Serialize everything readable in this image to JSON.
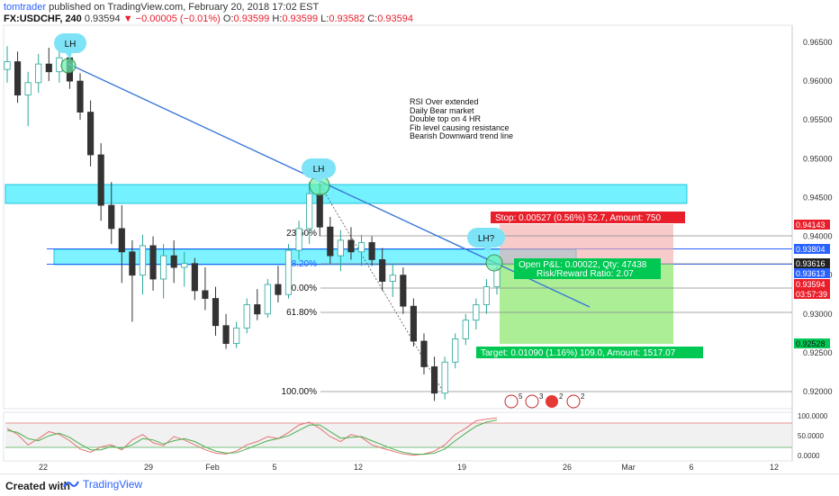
{
  "header": {
    "author": "tomtrader",
    "published": " published on TradingView.com, February 20, 2018 17:02 EST",
    "symbol": "FX:USDCHF, 240",
    "last": "0.93594",
    "change": "−0.00005 (−0.01%)",
    "ohlc_open_label": "O:",
    "ohlc_open": "0.93599",
    "ohlc_high_label": "H:",
    "ohlc_high": "0.93599",
    "ohlc_low_label": "L:",
    "ohlc_low": "0.93582",
    "ohlc_close_label": "C:",
    "ohlc_close": "0.93594"
  },
  "annotations": {
    "notes": [
      "RSI Over extended",
      "Daily Bear market",
      "Double top on 4 HR",
      "Fib level causing resistance",
      "Bearish Downward trend line"
    ],
    "bubbles": [
      "LH",
      "LH",
      "LH?"
    ],
    "fib_labels": [
      "23.60%",
      "38.20%",
      "50.00%",
      "61.80%",
      "100.00%"
    ],
    "stop_label": "Stop: 0.00527 (0.56%) 52.7, Amount: 750",
    "target_label": "Target: 0.01090 (1.16%) 109.0, Amount: 1517.07",
    "pnl_label": "Open P&L: 0.00022, Qty: 47438",
    "rr_label": "Risk/Reward Ratio: 2.07",
    "event_badges": [
      "5",
      "3",
      "2",
      "2"
    ]
  },
  "colors": {
    "candle_up": "#26a69a",
    "candle_down": "#333333",
    "resistance_zone": "#00e5ff",
    "trend_line": "#3b78d8",
    "stop_zone": "#f4a8a8",
    "target_zone": "#8fe873",
    "stop_tag": "#e91e2b",
    "target_tag": "#00c853",
    "stoch_k": "#e57373",
    "stoch_d": "#4caf50"
  },
  "chart_data": {
    "type": "candlestick",
    "symbol": "FX:USDCHF",
    "interval": "240",
    "x_ticks": [
      "22",
      "29",
      "Feb",
      "5",
      "12",
      "19",
      "26",
      "Mar",
      "6",
      "12"
    ],
    "price_axis": {
      "ylim": [
        0.9178,
        0.9672
      ],
      "ticks": [
        "0.96500",
        "0.96000",
        "0.95500",
        "0.95000",
        "0.94500",
        "0.94000",
        "0.93500",
        "0.93000",
        "0.92500",
        "0.92000"
      ],
      "tick_values": [
        0.965,
        0.96,
        0.955,
        0.95,
        0.945,
        0.94,
        0.935,
        0.93,
        0.925,
        0.92
      ]
    },
    "price_tags": [
      {
        "value": "0.94143",
        "role": "stop"
      },
      {
        "value": "0.93804",
        "role": "level"
      },
      {
        "value": "0.93616",
        "role": "current"
      },
      {
        "value": "0.93613",
        "role": "entry"
      },
      {
        "value": "0.93594",
        "role": "last"
      },
      {
        "value": "03:57:39",
        "role": "countdown"
      },
      {
        "value": "0.92528",
        "role": "target"
      }
    ],
    "candles": [
      {
        "o": 0.9615,
        "h": 0.9645,
        "l": 0.9598,
        "c": 0.9625
      },
      {
        "o": 0.9625,
        "h": 0.9638,
        "l": 0.9572,
        "c": 0.9582
      },
      {
        "o": 0.9582,
        "h": 0.9612,
        "l": 0.9542,
        "c": 0.9598
      },
      {
        "o": 0.9598,
        "h": 0.9635,
        "l": 0.9585,
        "c": 0.9622
      },
      {
        "o": 0.9622,
        "h": 0.9643,
        "l": 0.96,
        "c": 0.9612
      },
      {
        "o": 0.9612,
        "h": 0.964,
        "l": 0.9598,
        "c": 0.963
      },
      {
        "o": 0.963,
        "h": 0.9633,
        "l": 0.959,
        "c": 0.96
      },
      {
        "o": 0.96,
        "h": 0.961,
        "l": 0.955,
        "c": 0.956
      },
      {
        "o": 0.956,
        "h": 0.9575,
        "l": 0.949,
        "c": 0.9505
      },
      {
        "o": 0.9505,
        "h": 0.952,
        "l": 0.942,
        "c": 0.944
      },
      {
        "o": 0.944,
        "h": 0.947,
        "l": 0.939,
        "c": 0.941
      },
      {
        "o": 0.941,
        "h": 0.944,
        "l": 0.934,
        "c": 0.938
      },
      {
        "o": 0.938,
        "h": 0.9395,
        "l": 0.929,
        "c": 0.935
      },
      {
        "o": 0.935,
        "h": 0.9402,
        "l": 0.9325,
        "c": 0.9388
      },
      {
        "o": 0.9388,
        "h": 0.94,
        "l": 0.933,
        "c": 0.9345
      },
      {
        "o": 0.9345,
        "h": 0.939,
        "l": 0.932,
        "c": 0.9375
      },
      {
        "o": 0.9375,
        "h": 0.9395,
        "l": 0.934,
        "c": 0.936
      },
      {
        "o": 0.936,
        "h": 0.938,
        "l": 0.9335,
        "c": 0.9365
      },
      {
        "o": 0.9365,
        "h": 0.9372,
        "l": 0.9318,
        "c": 0.933
      },
      {
        "o": 0.933,
        "h": 0.936,
        "l": 0.9305,
        "c": 0.932
      },
      {
        "o": 0.932,
        "h": 0.9335,
        "l": 0.9272,
        "c": 0.9285
      },
      {
        "o": 0.9285,
        "h": 0.93,
        "l": 0.9255,
        "c": 0.9262
      },
      {
        "o": 0.9262,
        "h": 0.929,
        "l": 0.9256,
        "c": 0.9282
      },
      {
        "o": 0.9282,
        "h": 0.932,
        "l": 0.9275,
        "c": 0.9312
      },
      {
        "o": 0.9312,
        "h": 0.9332,
        "l": 0.9292,
        "c": 0.93
      },
      {
        "o": 0.93,
        "h": 0.9345,
        "l": 0.9295,
        "c": 0.9338
      },
      {
        "o": 0.9338,
        "h": 0.9362,
        "l": 0.9315,
        "c": 0.9325
      },
      {
        "o": 0.9325,
        "h": 0.939,
        "l": 0.932,
        "c": 0.9382
      },
      {
        "o": 0.9382,
        "h": 0.942,
        "l": 0.937,
        "c": 0.941
      },
      {
        "o": 0.941,
        "h": 0.947,
        "l": 0.939,
        "c": 0.9455
      },
      {
        "o": 0.9455,
        "h": 0.947,
        "l": 0.94,
        "c": 0.9412
      },
      {
        "o": 0.9412,
        "h": 0.9425,
        "l": 0.9365,
        "c": 0.9375
      },
      {
        "o": 0.9375,
        "h": 0.9408,
        "l": 0.9355,
        "c": 0.9395
      },
      {
        "o": 0.9395,
        "h": 0.9412,
        "l": 0.937,
        "c": 0.938
      },
      {
        "o": 0.938,
        "h": 0.9402,
        "l": 0.9362,
        "c": 0.9392
      },
      {
        "o": 0.9392,
        "h": 0.94,
        "l": 0.9362,
        "c": 0.937
      },
      {
        "o": 0.937,
        "h": 0.9385,
        "l": 0.933,
        "c": 0.9342
      },
      {
        "o": 0.9342,
        "h": 0.9365,
        "l": 0.9322,
        "c": 0.935
      },
      {
        "o": 0.935,
        "h": 0.936,
        "l": 0.93,
        "c": 0.931
      },
      {
        "o": 0.931,
        "h": 0.932,
        "l": 0.9258,
        "c": 0.9265
      },
      {
        "o": 0.9265,
        "h": 0.9275,
        "l": 0.9222,
        "c": 0.9232
      },
      {
        "o": 0.9232,
        "h": 0.9245,
        "l": 0.9188,
        "c": 0.9198
      },
      {
        "o": 0.9198,
        "h": 0.9245,
        "l": 0.919,
        "c": 0.9238
      },
      {
        "o": 0.9238,
        "h": 0.9275,
        "l": 0.923,
        "c": 0.9268
      },
      {
        "o": 0.9268,
        "h": 0.93,
        "l": 0.926,
        "c": 0.9292
      },
      {
        "o": 0.9292,
        "h": 0.932,
        "l": 0.928,
        "c": 0.9312
      },
      {
        "o": 0.9312,
        "h": 0.9345,
        "l": 0.93,
        "c": 0.9335
      },
      {
        "o": 0.9335,
        "h": 0.9362,
        "l": 0.9325,
        "c": 0.9358
      }
    ],
    "stoch_axis": {
      "ticks": [
        "100.0000",
        "50.0000",
        "0.0000"
      ],
      "upper": 80,
      "lower": 20
    },
    "stoch_k": [
      70,
      55,
      30,
      45,
      62,
      55,
      40,
      20,
      12,
      25,
      30,
      18,
      42,
      55,
      35,
      28,
      50,
      42,
      30,
      18,
      10,
      8,
      15,
      30,
      38,
      50,
      45,
      60,
      78,
      85,
      70,
      50,
      38,
      55,
      48,
      30,
      22,
      15,
      8,
      5,
      8,
      15,
      30,
      55,
      70,
      88,
      92,
      95
    ],
    "stoch_d": [
      65,
      60,
      45,
      40,
      52,
      58,
      48,
      32,
      18,
      18,
      26,
      22,
      30,
      45,
      42,
      32,
      40,
      45,
      38,
      25,
      15,
      10,
      11,
      20,
      30,
      40,
      45,
      52,
      65,
      78,
      78,
      62,
      46,
      48,
      50,
      40,
      30,
      20,
      12,
      8,
      7,
      10,
      20,
      40,
      58,
      75,
      85,
      90
    ]
  }
}
